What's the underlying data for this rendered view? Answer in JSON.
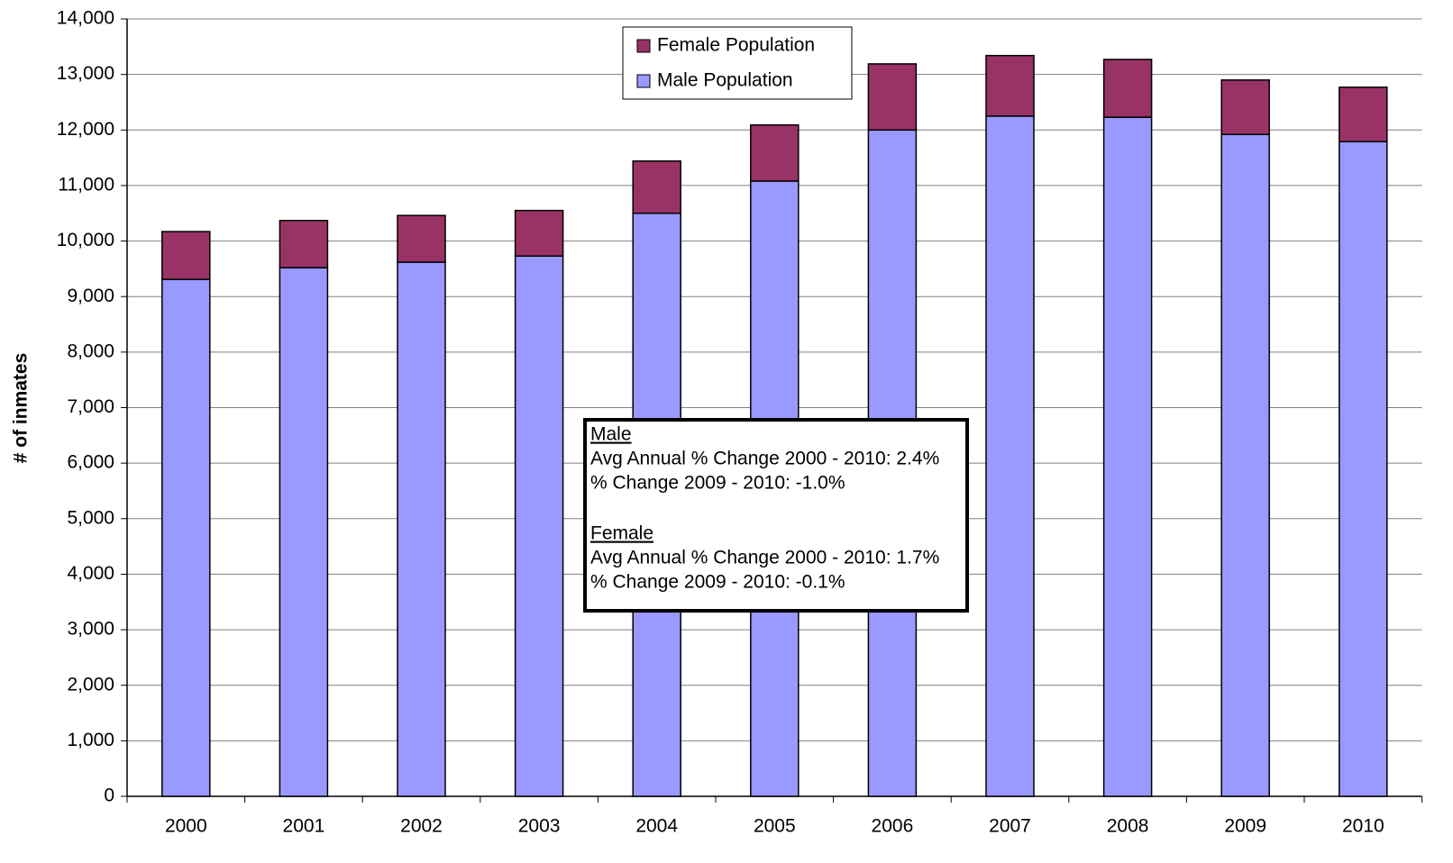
{
  "chart_data": {
    "type": "stacked_bar",
    "y_label": "# of inmates",
    "categories": [
      "2000",
      "2001",
      "2002",
      "2003",
      "2004",
      "2005",
      "2006",
      "2007",
      "2008",
      "2009",
      "2010"
    ],
    "series": [
      {
        "name": "Male Population",
        "color": "#9999ff",
        "values": [
          9310,
          9520,
          9620,
          9730,
          10500,
          11080,
          12000,
          12250,
          12230,
          11920,
          11790
        ]
      },
      {
        "name": "Female Population",
        "color": "#993366",
        "values": [
          860,
          850,
          840,
          820,
          940,
          1010,
          1190,
          1090,
          1040,
          980,
          980
        ]
      }
    ],
    "ylim": [
      0,
      14000
    ],
    "yticks": [
      0,
      {
        "value": 1000,
        "label": "1,000"
      },
      {
        "value": 2000,
        "label": "2,000"
      },
      {
        "value": 3000,
        "label": "3,000"
      },
      {
        "value": 4000,
        "label": "4,000"
      },
      {
        "value": 5000,
        "label": "5,000"
      },
      {
        "value": 6000,
        "label": "6,000"
      },
      {
        "value": 7000,
        "label": "7,000"
      },
      {
        "value": 8000,
        "label": "8,000"
      },
      {
        "value": 9000,
        "label": "9,000"
      },
      {
        "value": 10000,
        "label": "10,000"
      },
      {
        "value": 11000,
        "label": "11,000"
      },
      {
        "value": 12000,
        "label": "12,000"
      },
      {
        "value": 13000,
        "label": "13,000"
      },
      {
        "value": 14000,
        "label": "14,000"
      }
    ],
    "grid": true,
    "legend": "top-center",
    "annotations": [
      {
        "heading": "Male",
        "lines": [
          "Avg Annual % Change 2000 - 2010: 2.4%",
          "% Change 2009 - 2010: -1.0%"
        ]
      },
      {
        "heading": "Female",
        "lines": [
          "Avg Annual % Change 2000 - 2010: 1.7%",
          "% Change 2009 - 2010: -0.1%"
        ]
      }
    ]
  }
}
